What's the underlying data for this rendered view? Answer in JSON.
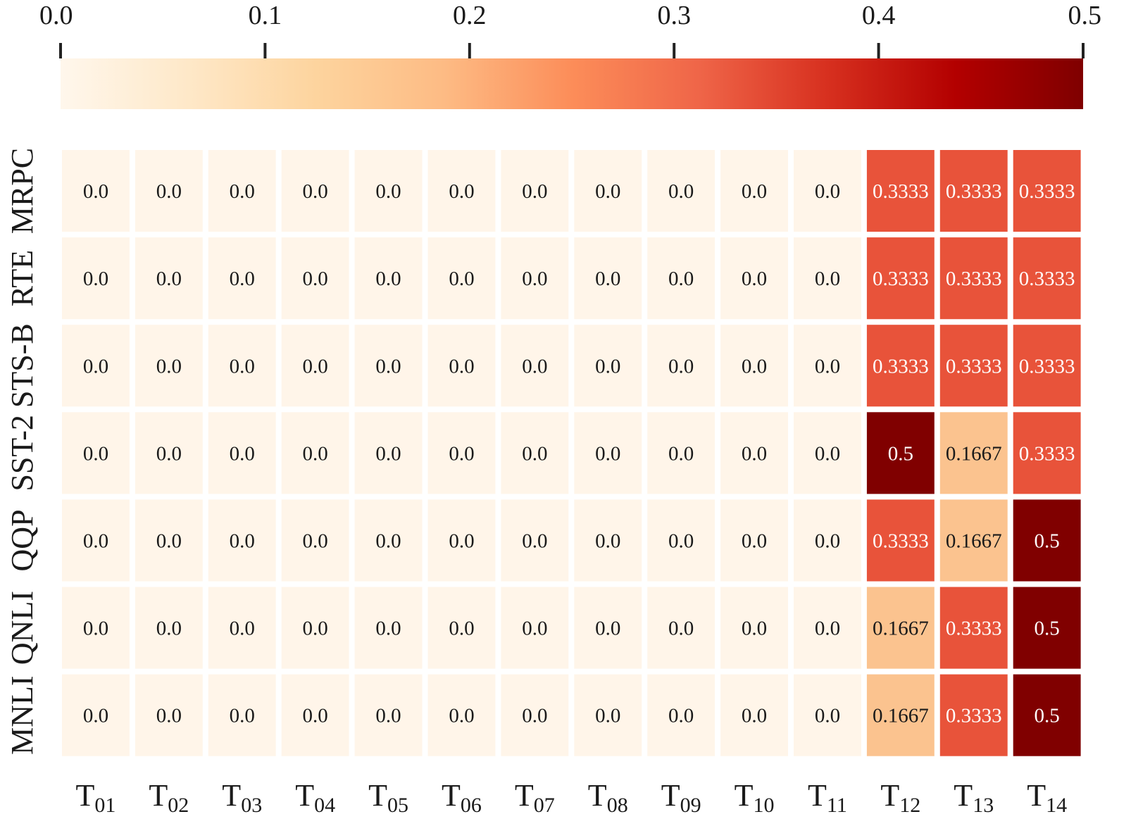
{
  "chart_data": {
    "type": "heatmap",
    "title": "",
    "xlabel": "",
    "ylabel": "",
    "columns": [
      {
        "base": "T",
        "sub": "01"
      },
      {
        "base": "T",
        "sub": "02"
      },
      {
        "base": "T",
        "sub": "03"
      },
      {
        "base": "T",
        "sub": "04"
      },
      {
        "base": "T",
        "sub": "05"
      },
      {
        "base": "T",
        "sub": "06"
      },
      {
        "base": "T",
        "sub": "07"
      },
      {
        "base": "T",
        "sub": "08"
      },
      {
        "base": "T",
        "sub": "09"
      },
      {
        "base": "T",
        "sub": "10"
      },
      {
        "base": "T",
        "sub": "11"
      },
      {
        "base": "T",
        "sub": "12"
      },
      {
        "base": "T",
        "sub": "13"
      },
      {
        "base": "T",
        "sub": "14"
      }
    ],
    "rows": [
      "MRPC",
      "RTE",
      "STS-B",
      "SST-2",
      "QQP",
      "QNLI",
      "MNLI"
    ],
    "values": [
      [
        0.0,
        0.0,
        0.0,
        0.0,
        0.0,
        0.0,
        0.0,
        0.0,
        0.0,
        0.0,
        0.0,
        0.3333,
        0.3333,
        0.3333
      ],
      [
        0.0,
        0.0,
        0.0,
        0.0,
        0.0,
        0.0,
        0.0,
        0.0,
        0.0,
        0.0,
        0.0,
        0.3333,
        0.3333,
        0.3333
      ],
      [
        0.0,
        0.0,
        0.0,
        0.0,
        0.0,
        0.0,
        0.0,
        0.0,
        0.0,
        0.0,
        0.0,
        0.3333,
        0.3333,
        0.3333
      ],
      [
        0.0,
        0.0,
        0.0,
        0.0,
        0.0,
        0.0,
        0.0,
        0.0,
        0.0,
        0.0,
        0.0,
        0.5,
        0.1667,
        0.3333
      ],
      [
        0.0,
        0.0,
        0.0,
        0.0,
        0.0,
        0.0,
        0.0,
        0.0,
        0.0,
        0.0,
        0.0,
        0.3333,
        0.1667,
        0.5
      ],
      [
        0.0,
        0.0,
        0.0,
        0.0,
        0.0,
        0.0,
        0.0,
        0.0,
        0.0,
        0.0,
        0.0,
        0.1667,
        0.3333,
        0.5
      ],
      [
        0.0,
        0.0,
        0.0,
        0.0,
        0.0,
        0.0,
        0.0,
        0.0,
        0.0,
        0.0,
        0.0,
        0.1667,
        0.3333,
        0.5
      ]
    ],
    "value_labels": [
      [
        "0.0",
        "0.0",
        "0.0",
        "0.0",
        "0.0",
        "0.0",
        "0.0",
        "0.0",
        "0.0",
        "0.0",
        "0.0",
        "0.3333",
        "0.3333",
        "0.3333"
      ],
      [
        "0.0",
        "0.0",
        "0.0",
        "0.0",
        "0.0",
        "0.0",
        "0.0",
        "0.0",
        "0.0",
        "0.0",
        "0.0",
        "0.3333",
        "0.3333",
        "0.3333"
      ],
      [
        "0.0",
        "0.0",
        "0.0",
        "0.0",
        "0.0",
        "0.0",
        "0.0",
        "0.0",
        "0.0",
        "0.0",
        "0.0",
        "0.3333",
        "0.3333",
        "0.3333"
      ],
      [
        "0.0",
        "0.0",
        "0.0",
        "0.0",
        "0.0",
        "0.0",
        "0.0",
        "0.0",
        "0.0",
        "0.0",
        "0.0",
        "0.5",
        "0.1667",
        "0.3333"
      ],
      [
        "0.0",
        "0.0",
        "0.0",
        "0.0",
        "0.0",
        "0.0",
        "0.0",
        "0.0",
        "0.0",
        "0.0",
        "0.0",
        "0.3333",
        "0.1667",
        "0.5"
      ],
      [
        "0.0",
        "0.0",
        "0.0",
        "0.0",
        "0.0",
        "0.0",
        "0.0",
        "0.0",
        "0.0",
        "0.0",
        "0.0",
        "0.1667",
        "0.3333",
        "0.5"
      ],
      [
        "0.0",
        "0.0",
        "0.0",
        "0.0",
        "0.0",
        "0.0",
        "0.0",
        "0.0",
        "0.0",
        "0.0",
        "0.0",
        "0.1667",
        "0.3333",
        "0.5"
      ]
    ],
    "colorbar": {
      "position": "top",
      "range": [
        0.0,
        0.5
      ],
      "ticks": [
        "0.0",
        "0.1",
        "0.2",
        "0.3",
        "0.4",
        "0.5"
      ],
      "colormap": "OrRd",
      "stops": [
        {
          "value": 0.0,
          "color": "#fff7ec"
        },
        {
          "value": 0.0625,
          "color": "#fee8c8"
        },
        {
          "value": 0.125,
          "color": "#fdd49e"
        },
        {
          "value": 0.1875,
          "color": "#fdbb84"
        },
        {
          "value": 0.25,
          "color": "#fc8d59"
        },
        {
          "value": 0.3125,
          "color": "#ef6548"
        },
        {
          "value": 0.375,
          "color": "#d7301f"
        },
        {
          "value": 0.4375,
          "color": "#b30000"
        },
        {
          "value": 0.5,
          "color": "#7f0000"
        }
      ]
    },
    "cell_colors": {
      "0.0": "#fff5e9",
      "0.1667": "#fbc38f",
      "0.3333": "#e8533a",
      "0.5": "#800000"
    },
    "grid": false,
    "legend": "none"
  }
}
